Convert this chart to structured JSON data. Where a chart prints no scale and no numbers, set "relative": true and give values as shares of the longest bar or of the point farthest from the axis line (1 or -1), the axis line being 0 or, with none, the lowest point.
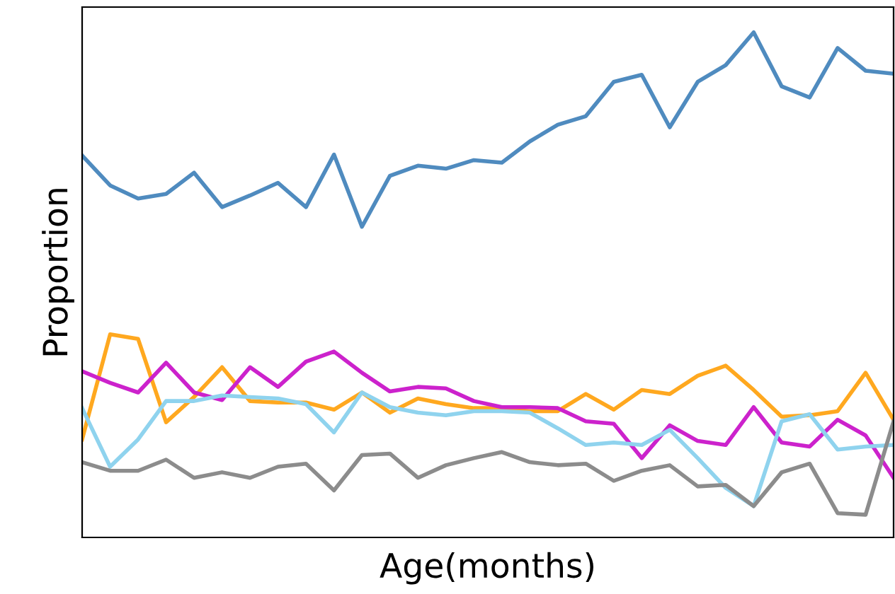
{
  "chart_data": {
    "type": "line",
    "relative": true,
    "xlabel": "Age(months)",
    "ylabel": "Proportion",
    "categories": [
      null,
      null,
      null,
      null,
      null,
      null,
      null,
      null,
      null,
      null,
      null,
      null,
      null,
      null,
      null,
      null,
      null,
      null,
      null,
      null,
      null,
      null,
      null,
      null,
      null,
      null,
      null,
      null,
      null,
      null
    ],
    "series": [
      {
        "color": "#4f8bbf",
        "values": [
          0.756,
          0.697,
          0.671,
          0.68,
          0.722,
          0.654,
          0.677,
          0.702,
          0.654,
          0.758,
          0.615,
          0.716,
          0.736,
          0.73,
          0.747,
          0.742,
          0.784,
          0.817,
          0.834,
          0.902,
          0.916,
          0.812,
          0.902,
          0.935,
          1,
          0.893,
          0.871,
          0.969,
          0.924,
          0.918
        ]
      },
      {
        "color": "#ffa81f",
        "values": [
          0.194,
          0.402,
          0.393,
          0.228,
          0.278,
          0.337,
          0.27,
          0.267,
          0.267,
          0.253,
          0.287,
          0.247,
          0.275,
          0.264,
          0.256,
          0.256,
          0.25,
          0.25,
          0.284,
          0.253,
          0.292,
          0.284,
          0.32,
          0.34,
          0.292,
          0.239,
          0.242,
          0.25,
          0.326,
          0.233
        ]
      },
      {
        "color": "#cc22cc",
        "values": [
          0.329,
          0.306,
          0.287,
          0.346,
          0.287,
          0.272,
          0.337,
          0.298,
          0.348,
          0.368,
          0.326,
          0.289,
          0.298,
          0.295,
          0.27,
          0.258,
          0.258,
          0.256,
          0.23,
          0.225,
          0.157,
          0.222,
          0.191,
          0.183,
          0.258,
          0.188,
          0.18,
          0.233,
          0.202,
          0.118
        ]
      },
      {
        "color": "#8fd3ee",
        "values": [
          0.256,
          0.14,
          0.194,
          0.27,
          0.27,
          0.281,
          0.278,
          0.275,
          0.264,
          0.208,
          0.287,
          0.258,
          0.247,
          0.242,
          0.25,
          0.25,
          0.247,
          0.216,
          0.183,
          0.188,
          0.183,
          0.213,
          0.157,
          0.098,
          0.062,
          0.23,
          0.244,
          0.174,
          0.18,
          0.183
        ]
      },
      {
        "color": "#8c8c8c",
        "values": [
          0.149,
          0.132,
          0.132,
          0.154,
          0.118,
          0.129,
          0.118,
          0.14,
          0.146,
          0.093,
          0.163,
          0.166,
          0.118,
          0.143,
          0.157,
          0.169,
          0.149,
          0.143,
          0.146,
          0.112,
          0.132,
          0.143,
          0.101,
          0.104,
          0.062,
          0.129,
          0.146,
          0.048,
          0.045,
          0.23
        ]
      }
    ]
  }
}
